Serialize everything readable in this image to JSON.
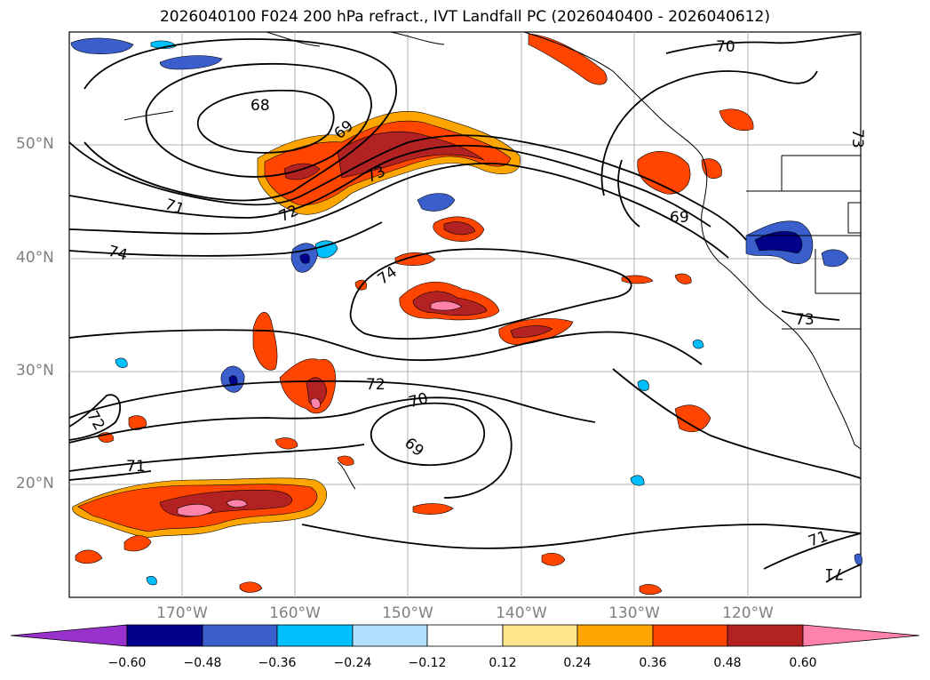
{
  "title": "2026040100 F024 200 hPa refract., IVT Landfall PC (2026040400 - 2026040612)",
  "lat_labels": [
    "50°N",
    "40°N",
    "30°N",
    "20°N"
  ],
  "lon_labels": [
    "170°W",
    "160°W",
    "150°W",
    "140°W",
    "130°W",
    "120°W"
  ],
  "contour_labels": {
    "c68": "68",
    "c69a": "69",
    "c70a": "70",
    "c71a": "71",
    "c72a": "72",
    "c73a": "73",
    "c74a": "74",
    "c74b": "74",
    "c69b": "69",
    "c72b": "72",
    "c70b": "70",
    "c69c": "69",
    "c71b": "71",
    "c71c": "71",
    "c71d": "71",
    "c72c": "72",
    "c73b": "73",
    "c73c": "73"
  },
  "colorbar": {
    "tick_labels": [
      "−0.60",
      "−0.48",
      "−0.36",
      "−0.24",
      "−0.12",
      "0.12",
      "0.24",
      "0.36",
      "0.48",
      "0.60"
    ],
    "colors": [
      "#9932cc",
      "#00008b",
      "#3a5fcd",
      "#00bfff",
      "#b0e2ff",
      "#ffffff",
      "#ffe68c",
      "#ffa500",
      "#ff4500",
      "#b22222",
      "#ff82ab"
    ]
  },
  "colors": {
    "land_outline": "#000000",
    "contour": "#000000",
    "grid": "#b0b0b0",
    "axis_label": "#808080"
  }
}
